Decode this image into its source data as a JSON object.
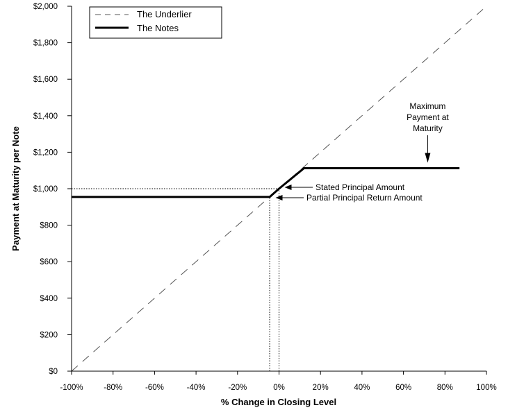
{
  "chart_data": {
    "type": "line",
    "xlabel": "% Change in Closing Level",
    "ylabel": "Payment at Maturity per Note",
    "xlim": [
      -100,
      100
    ],
    "ylim": [
      0,
      2000
    ],
    "x_ticks": [
      -100,
      -80,
      -60,
      -40,
      -20,
      0,
      20,
      40,
      60,
      80,
      100
    ],
    "x_tick_labels": [
      "-100%",
      "-80%",
      "-60%",
      "-40%",
      "-20%",
      "0%",
      "20%",
      "40%",
      "60%",
      "80%",
      "100%"
    ],
    "y_ticks": [
      0,
      200,
      400,
      600,
      800,
      1000,
      1200,
      1400,
      1600,
      1800,
      2000
    ],
    "y_tick_labels": [
      "$0",
      "$200",
      "$400",
      "$600",
      "$800",
      "$1,000",
      "$1,200",
      "$1,400",
      "$1,600",
      "$1,800",
      "$2,000"
    ],
    "grid": false,
    "legend_position": "top-left",
    "series": [
      {
        "name": "The Underlier",
        "style": "dashed",
        "color": "#555555",
        "points": [
          [
            -100,
            0
          ],
          [
            100,
            2000
          ]
        ]
      },
      {
        "name": "The Notes",
        "style": "solid",
        "color": "#000000",
        "points": [
          [
            -100,
            955
          ],
          [
            -4.5,
            955
          ],
          [
            0,
            1000
          ],
          [
            12,
            1112
          ],
          [
            87,
            1112
          ]
        ]
      }
    ],
    "reference_lines": [
      {
        "style": "dotted",
        "points": [
          [
            -100,
            1000
          ],
          [
            0,
            1000
          ]
        ]
      },
      {
        "style": "dotted",
        "points": [
          [
            0,
            0
          ],
          [
            0,
            1000
          ]
        ]
      },
      {
        "style": "dotted",
        "points": [
          [
            -4.5,
            0
          ],
          [
            -4.5,
            955
          ]
        ]
      }
    ],
    "annotations": [
      {
        "key": "stated",
        "text": [
          "Stated Principal Amount"
        ],
        "target": [
          0,
          1000
        ]
      },
      {
        "key": "partial",
        "text": [
          "Partial Principal Return Amount"
        ],
        "target": [
          0,
          955
        ]
      },
      {
        "key": "max",
        "text": [
          "Maximum",
          "Payment at",
          "Maturity"
        ],
        "target": [
          72,
          1112
        ]
      }
    ]
  }
}
